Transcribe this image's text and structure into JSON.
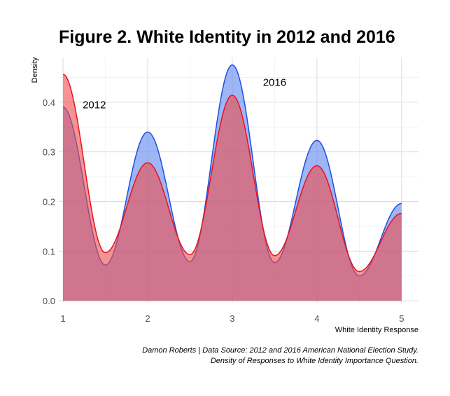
{
  "chart_data": {
    "type": "area",
    "title": "Figure 2. White Identity in 2012 and 2016",
    "xlabel": "White Identity Response",
    "ylabel": "Density",
    "xlim": [
      0.95,
      5.2
    ],
    "ylim": [
      -0.004,
      0.49
    ],
    "x_ticks": [
      1,
      2,
      3,
      4,
      5
    ],
    "y_ticks": [
      0.0,
      0.1,
      0.2,
      0.3,
      0.4
    ],
    "y_tick_labels": [
      "0.0",
      "0.1",
      "0.2",
      "0.3",
      "0.4"
    ],
    "grid": true,
    "legend": "none",
    "series": [
      {
        "name": "2016",
        "fill": "#6a8ff0",
        "fill_opacity": 0.65,
        "stroke": "#1f4fe0",
        "x": [
          1,
          1.5,
          2,
          2.5,
          3,
          3.5,
          4,
          4.5,
          5
        ],
        "y": [
          0.39,
          0.072,
          0.34,
          0.079,
          0.475,
          0.077,
          0.323,
          0.05,
          0.196
        ]
      },
      {
        "name": "2012",
        "fill": "#f04a4a",
        "fill_opacity": 0.6,
        "stroke": "#e8141e",
        "x": [
          1,
          1.5,
          2,
          2.5,
          3,
          3.5,
          4,
          4.5,
          5
        ],
        "y": [
          0.456,
          0.097,
          0.278,
          0.093,
          0.414,
          0.091,
          0.272,
          0.059,
          0.176
        ]
      }
    ],
    "annotations": [
      {
        "text": "2012",
        "x": 1.37,
        "y": 0.395
      },
      {
        "text": "2016",
        "x": 3.5,
        "y": 0.44
      }
    ],
    "caption_line1": "Damon Roberts | Data Source: 2012 and 2016 American National Election Study.",
    "caption_line2": "Density of Responses to White Identity Importance Question."
  }
}
